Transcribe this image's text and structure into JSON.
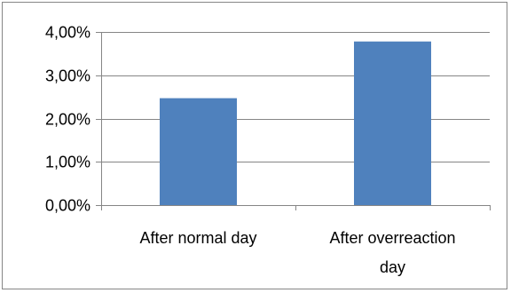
{
  "chart_data": {
    "type": "bar",
    "title": "",
    "xlabel": "",
    "ylabel": "",
    "categories": [
      [
        "After normal day"
      ],
      [
        "After overreaction",
        "day"
      ]
    ],
    "values": [
      2.47,
      3.78
    ],
    "ylim": [
      0,
      4
    ],
    "yticks": [
      {
        "value": 0,
        "label": "0,00%"
      },
      {
        "value": 1,
        "label": "1,00%"
      },
      {
        "value": 2,
        "label": "2,00%"
      },
      {
        "value": 3,
        "label": "3,00%"
      },
      {
        "value": 4,
        "label": "4,00%"
      }
    ],
    "grid": true,
    "legend": "none",
    "bar_color": "#4f81bd",
    "grid_color": "#868686"
  }
}
